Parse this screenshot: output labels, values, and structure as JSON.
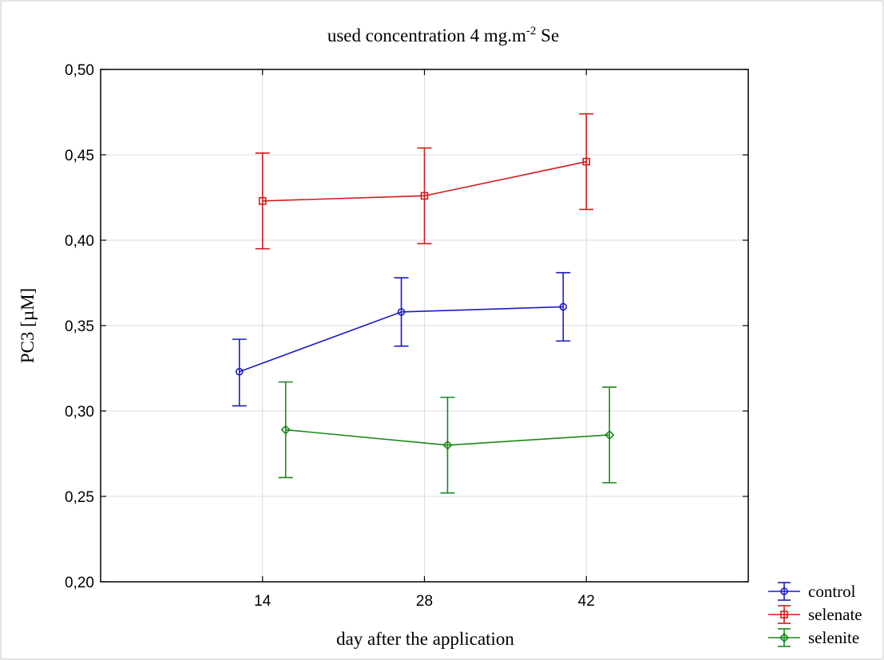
{
  "chart_data": {
    "type": "line",
    "title_main": "used concentration 4 mg.m",
    "title_sup": "-2",
    "title_tail": " Se",
    "xlabel": "day after the application",
    "ylabel": "PC3 [µM]",
    "x_ticks": [
      "14",
      "28",
      "42"
    ],
    "x_tick_values": [
      14,
      28,
      42
    ],
    "xlim": [
      0,
      56
    ],
    "ylim": [
      0.2,
      0.5
    ],
    "y_ticks": [
      0.2,
      0.25,
      0.3,
      0.35,
      0.4,
      0.45,
      0.5
    ],
    "y_tick_labels": [
      "0,20",
      "0,25",
      "0,30",
      "0,35",
      "0,40",
      "0,45",
      "0,50"
    ],
    "grid": true,
    "legend_position": "bottom-right outside",
    "series": [
      {
        "name": "control",
        "color": "#1a1ac8",
        "marker": "circle",
        "x": [
          12,
          26,
          40
        ],
        "y": [
          0.323,
          0.358,
          0.361
        ],
        "err_low": [
          0.303,
          0.338,
          0.341
        ],
        "err_high": [
          0.342,
          0.378,
          0.381
        ]
      },
      {
        "name": "selenate",
        "color": "#d41a1a",
        "marker": "square",
        "x": [
          14,
          28,
          42
        ],
        "y": [
          0.423,
          0.426,
          0.446
        ],
        "err_low": [
          0.395,
          0.398,
          0.418
        ],
        "err_high": [
          0.451,
          0.454,
          0.474
        ]
      },
      {
        "name": "selenite",
        "color": "#1a8a1a",
        "marker": "diamond",
        "x": [
          16,
          30,
          44
        ],
        "y": [
          0.289,
          0.28,
          0.286
        ],
        "err_low": [
          0.261,
          0.252,
          0.258
        ],
        "err_high": [
          0.317,
          0.308,
          0.314
        ]
      }
    ]
  }
}
